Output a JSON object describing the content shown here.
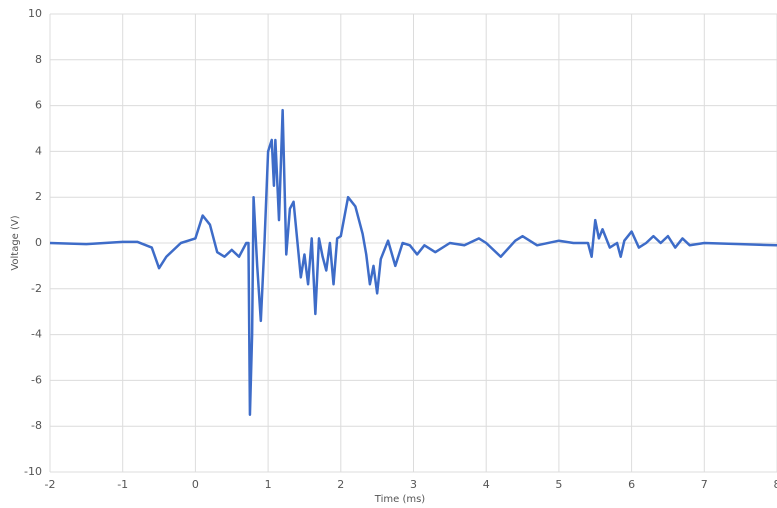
{
  "chart_data": {
    "type": "line",
    "xlabel": "Time (ms)",
    "ylabel": "Voltage (V)",
    "x": [
      -2,
      -1.5,
      -1,
      -0.8,
      -0.6,
      -0.5,
      -0.4,
      -0.2,
      0,
      0.1,
      0.2,
      0.3,
      0.4,
      0.5,
      0.6,
      0.7,
      0.73,
      0.75,
      0.78,
      0.8,
      0.85,
      0.9,
      0.95,
      1.0,
      1.05,
      1.08,
      1.1,
      1.15,
      1.2,
      1.25,
      1.3,
      1.35,
      1.45,
      1.5,
      1.55,
      1.6,
      1.65,
      1.7,
      1.75,
      1.8,
      1.85,
      1.9,
      1.95,
      2.0,
      2.1,
      2.2,
      2.3,
      2.35,
      2.4,
      2.45,
      2.5,
      2.55,
      2.65,
      2.75,
      2.85,
      2.95,
      3.05,
      3.15,
      3.3,
      3.5,
      3.7,
      3.9,
      4.0,
      4.2,
      4.4,
      4.5,
      4.7,
      5.0,
      5.2,
      5.4,
      5.45,
      5.5,
      5.55,
      5.6,
      5.7,
      5.8,
      5.85,
      5.9,
      6.0,
      6.1,
      6.2,
      6.3,
      6.4,
      6.5,
      6.6,
      6.7,
      6.8,
      7,
      7.5,
      8
    ],
    "values": [
      0,
      -0.05,
      0.05,
      0.05,
      -0.2,
      -1.1,
      -0.6,
      0,
      0.2,
      1.2,
      0.8,
      -0.4,
      -0.6,
      -0.3,
      -0.6,
      0,
      0,
      -7.5,
      -4,
      2,
      -1,
      -3.4,
      0,
      4,
      4.5,
      2.5,
      4.5,
      1,
      5.8,
      -0.5,
      1.5,
      1.8,
      -1.5,
      -0.5,
      -1.8,
      0.2,
      -3.1,
      0.2,
      -0.6,
      -1.2,
      0,
      -1.8,
      0.2,
      0.3,
      2,
      1.6,
      0.4,
      -0.5,
      -1.8,
      -1.0,
      -2.2,
      -0.7,
      0.1,
      -1,
      0,
      -0.1,
      -0.5,
      -0.1,
      -0.4,
      0,
      -0.1,
      0.2,
      0,
      -0.6,
      0.1,
      0.3,
      -0.1,
      0.1,
      0,
      0,
      -0.6,
      1,
      0.2,
      0.6,
      -0.2,
      0,
      -0.6,
      0.1,
      0.5,
      -0.2,
      0,
      0.3,
      0,
      0.3,
      -0.2,
      0.2,
      -0.1,
      0,
      -0.05,
      -0.1
    ],
    "color": "#3e6cc8",
    "xlim": [
      -2,
      8
    ],
    "xticks": [
      -2,
      -1,
      0,
      1,
      2,
      3,
      4,
      5,
      6,
      7,
      8
    ],
    "ylim": [
      -10,
      10
    ],
    "yticks": [
      -10,
      -8,
      -6,
      -4,
      -2,
      0,
      2,
      4,
      6,
      8,
      10
    ],
    "grid": true
  }
}
